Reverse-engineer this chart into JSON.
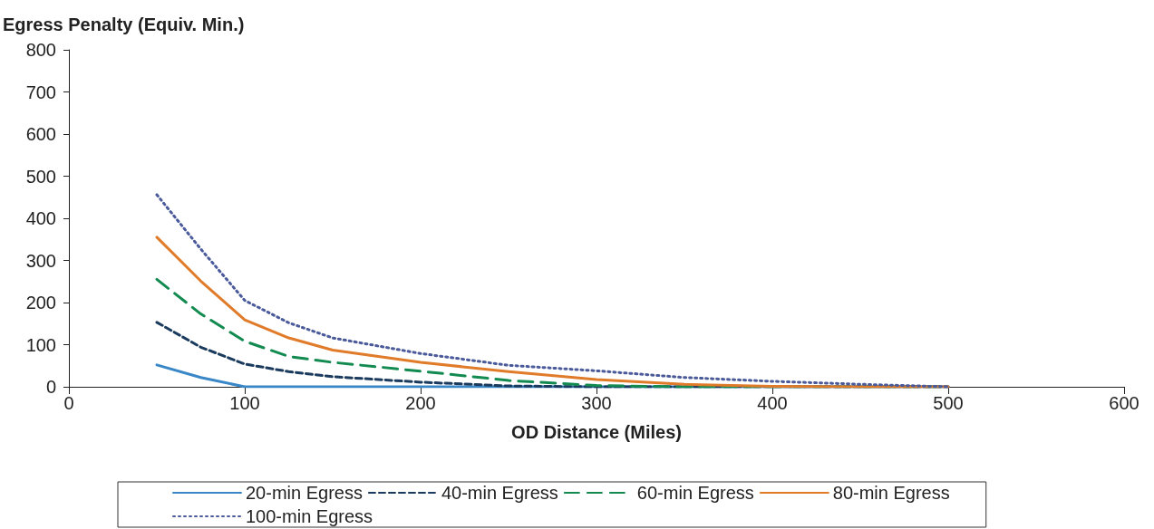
{
  "chart_data": {
    "type": "line",
    "ylabel": "Egress Penalty (Equiv. Min.)",
    "xlabel": "OD Distance (Miles)",
    "x": [
      50,
      75,
      100,
      125,
      150,
      200,
      250,
      300,
      350,
      400,
      450,
      500
    ],
    "series": [
      {
        "name": "20-min Egress",
        "color": "#3a87c8",
        "line_style": "solid",
        "values": [
          52,
          22,
          0,
          0,
          0,
          0,
          0,
          0,
          0,
          0,
          0,
          0
        ]
      },
      {
        "name": "40-min Egress",
        "color": "#1b3b5e",
        "line_style": "dashed",
        "values": [
          153,
          94,
          54,
          36,
          24,
          11,
          2,
          0,
          0,
          0,
          0,
          0
        ]
      },
      {
        "name": "60-min Egress",
        "color": "#128a50",
        "line_style": "dashed",
        "values": [
          255,
          173,
          108,
          72,
          58,
          37,
          15,
          3,
          0,
          0,
          0,
          0
        ]
      },
      {
        "name": "80-min Egress",
        "color": "#e07b2a",
        "line_style": "solid",
        "values": [
          355,
          251,
          159,
          116,
          87,
          58,
          36,
          17,
          6,
          1,
          0,
          0
        ]
      },
      {
        "name": "100-min Egress",
        "color": "#4a5a9a",
        "line_style": "dotted",
        "values": [
          456,
          327,
          205,
          152,
          116,
          79,
          51,
          38,
          22,
          13,
          6,
          0
        ]
      }
    ],
    "xlim": [
      0,
      600
    ],
    "xticks": [
      0,
      100,
      200,
      300,
      400,
      500,
      600
    ],
    "ylim": [
      0,
      800
    ],
    "yticks": [
      0,
      100,
      200,
      300,
      400,
      500,
      600,
      700,
      800
    ],
    "grid": false,
    "legend": "bottom",
    "marker": "none"
  }
}
